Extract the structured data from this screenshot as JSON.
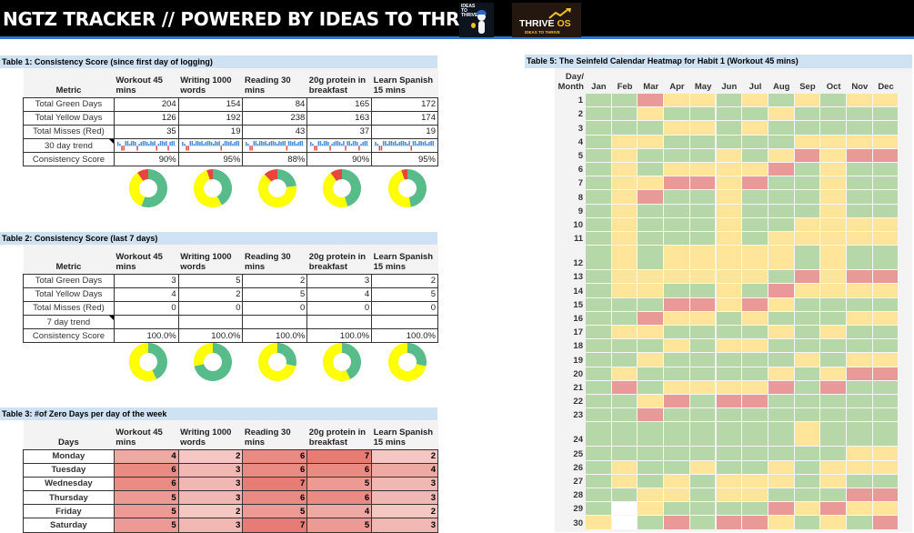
{
  "header": {
    "title": "NGTZ TRACKER // POWERED BY IDEAS TO THRIVE",
    "logo1_text": "IDEAS TO THRIVE",
    "logo2_main": "THRIVE",
    "logo2_os": "OS",
    "logo2_sub": "IDEAS TO THRIVE"
  },
  "colors": {
    "green": "#b6d7a8",
    "yellow": "#ffe599",
    "red": "#ea9999",
    "donut_green": "#57bb8a",
    "donut_yellow": "#ffff00",
    "donut_red": "#e8453c",
    "spark_blue": "#4a8fd8",
    "spark_red": "#e8453c"
  },
  "habits": [
    "Workout 45 mins",
    "Writing 1000 words",
    "Reading 30 mins",
    "20g protein in breakfast",
    "Learn Spanish 15 mins"
  ],
  "table1": {
    "title": "Table 1: Consistency Score (since first day of logging)",
    "metric_header": "Metric",
    "col_headers": [
      [
        "Workout 45",
        "mins"
      ],
      [
        "Writing 1000",
        "words"
      ],
      [
        "Reading 30",
        "mins"
      ],
      [
        "20g protein in",
        "breakfast"
      ],
      [
        "Learn Spanish",
        "15 mins"
      ]
    ],
    "rows": [
      {
        "label": "Total Green Days",
        "values": [
          "204",
          "154",
          "84",
          "165",
          "172"
        ]
      },
      {
        "label": "Total Yellow Days",
        "values": [
          "126",
          "192",
          "238",
          "163",
          "174"
        ]
      },
      {
        "label": "Total Misses (Red)",
        "values": [
          "35",
          "19",
          "43",
          "37",
          "19"
        ]
      }
    ],
    "trend_label": "30 day trend",
    "trend": [
      [
        1,
        1,
        -1,
        -1,
        1,
        1,
        1,
        1,
        1,
        1,
        -1,
        1,
        1,
        1,
        1,
        1,
        1,
        1,
        1,
        1,
        -1,
        1,
        1,
        1,
        1,
        1,
        -1,
        1,
        1,
        1
      ],
      [
        1,
        1,
        -1,
        -1,
        1,
        1,
        1,
        1,
        1,
        1,
        1,
        1,
        1,
        1,
        1,
        1,
        1,
        1,
        1,
        1,
        -1,
        1,
        1,
        1,
        1,
        1,
        1,
        1,
        1,
        1
      ],
      [
        1,
        1,
        -1,
        -1,
        1,
        1,
        1,
        1,
        1,
        1,
        1,
        1,
        1,
        1,
        1,
        1,
        1,
        1,
        1,
        1,
        1,
        -1,
        1,
        1,
        1,
        1,
        1,
        1,
        1,
        1
      ],
      [
        1,
        1,
        -1,
        -1,
        1,
        1,
        1,
        1,
        1,
        1,
        -1,
        1,
        1,
        1,
        1,
        1,
        1,
        1,
        -1,
        1,
        1,
        1,
        1,
        1,
        1,
        -1,
        1,
        1,
        1,
        1
      ],
      [
        1,
        1,
        -1,
        -1,
        1,
        1,
        1,
        1,
        1,
        1,
        1,
        1,
        1,
        1,
        1,
        1,
        1,
        1,
        -1,
        1,
        1,
        1,
        1,
        1,
        1,
        1,
        1,
        1,
        1,
        1
      ]
    ],
    "score_label": "Consistency Score",
    "scores": [
      "90%",
      "95%",
      "88%",
      "90%",
      "95%"
    ],
    "donuts": [
      {
        "green": 204,
        "yellow": 126,
        "red": 35
      },
      {
        "green": 154,
        "yellow": 192,
        "red": 19
      },
      {
        "green": 84,
        "yellow": 238,
        "red": 43
      },
      {
        "green": 165,
        "yellow": 163,
        "red": 37
      },
      {
        "green": 172,
        "yellow": 174,
        "red": 19
      }
    ]
  },
  "table2": {
    "title": "Table 2: Consistency Score (last 7 days)",
    "metric_header": "Metric",
    "col_headers": [
      [
        "Workout 45",
        "mins"
      ],
      [
        "Writing 1000",
        "words"
      ],
      [
        "Reading 30",
        "mins"
      ],
      [
        "20g protein in",
        "breakfast"
      ],
      [
        "Learn Spanish",
        "15 mins"
      ]
    ],
    "rows": [
      {
        "label": "Total Green Days",
        "values": [
          "3",
          "5",
          "2",
          "3",
          "2"
        ]
      },
      {
        "label": "Total Yellow Days",
        "values": [
          "4",
          "2",
          "5",
          "4",
          "5"
        ]
      },
      {
        "label": "Total Misses (Red)",
        "values": [
          "0",
          "0",
          "0",
          "0",
          "0"
        ]
      }
    ],
    "trend_label": "7 day trend",
    "score_label": "Consistency Score",
    "scores": [
      "100.0%",
      "100.0%",
      "100.0%",
      "100.0%",
      "100.0%"
    ],
    "donuts": [
      {
        "green": 3,
        "yellow": 4,
        "red": 0
      },
      {
        "green": 5,
        "yellow": 2,
        "red": 0
      },
      {
        "green": 2,
        "yellow": 5,
        "red": 0
      },
      {
        "green": 3,
        "yellow": 4,
        "red": 0
      },
      {
        "green": 2,
        "yellow": 5,
        "red": 0
      }
    ]
  },
  "table3": {
    "title": "Table 3: #of Zero Days per day of the week",
    "days_header": "Days",
    "col_headers": [
      [
        "Workout 45",
        "mins"
      ],
      [
        "Writing 1000",
        "words"
      ],
      [
        "Reading 30",
        "mins"
      ],
      [
        "20g protein in",
        "breakfast"
      ],
      [
        "Learn Spanish",
        "15 mins"
      ]
    ],
    "rows": [
      {
        "label": "Monday",
        "values": [
          4,
          2,
          6,
          7,
          2
        ]
      },
      {
        "label": "Tuesday",
        "values": [
          6,
          3,
          6,
          6,
          4
        ]
      },
      {
        "label": "Wednesday",
        "values": [
          6,
          3,
          7,
          5,
          3
        ]
      },
      {
        "label": "Thursday",
        "values": [
          5,
          3,
          6,
          6,
          3
        ]
      },
      {
        "label": "Friday",
        "values": [
          5,
          2,
          5,
          4,
          2
        ]
      },
      {
        "label": "Saturday",
        "values": [
          5,
          3,
          7,
          5,
          3
        ]
      }
    ]
  },
  "heatmap": {
    "title": "Table 5: The Seinfeld Calendar Heatmap for Habit 1 (Workout 45 mins)",
    "corner_label_1": "Day/",
    "corner_label_2": "Month",
    "months": [
      "Jan",
      "Feb",
      "Mar",
      "Apr",
      "May",
      "Jun",
      "Jul",
      "Aug",
      "Sep",
      "Oct",
      "Nov",
      "Dec"
    ],
    "days": [
      "1",
      "2",
      "3",
      "4",
      "5",
      "6",
      "7",
      "8",
      "9",
      "10",
      "11",
      "12",
      "13",
      "14",
      "15",
      "16",
      "17",
      "18",
      "19",
      "20",
      "21",
      "22",
      "23",
      "24",
      "25",
      "26",
      "27",
      "28",
      "29",
      "30"
    ],
    "grid": [
      "GGRYYGYGYGYY",
      "GGYGGGGYGGGG",
      "GGGYYGYGGGGG",
      "GYYGGGGGYYYY",
      "GYGGGYGYRYRR",
      "GYGYYYYRGYGG",
      "GYYRRYRGGYGG",
      "GYRGGYGGGYGG",
      "GYGGGYGGGYGG",
      "GYGGGYGGYYYY",
      "GYGGGYGYYYYY",
      "GYGYYYYYGYGG",
      "GYYYYYYGRYRR",
      "GYYGGYGRYYYY",
      "GGGRRYRYGGGG",
      "GGRYYGYGGGYY",
      "GYYGGGGYGYGG",
      "GGGYGYYGGGGG",
      "GGYGGGGGYGYY",
      "GYGGGGGYGYRR",
      "GRGYYYYRGRGG",
      "GGYRGRRGGGGG",
      "GGRGGGGGGGGG",
      "GGGGGGGGYGGG",
      "GGGGGGGGGGYY",
      "GYGGYGGYGYYY",
      "GYGYGYYYGYGG",
      "GGYYGYYGGGRR",
      "GWYGGGGRYRYY",
      "YWGRGRRYGYGR"
    ]
  }
}
